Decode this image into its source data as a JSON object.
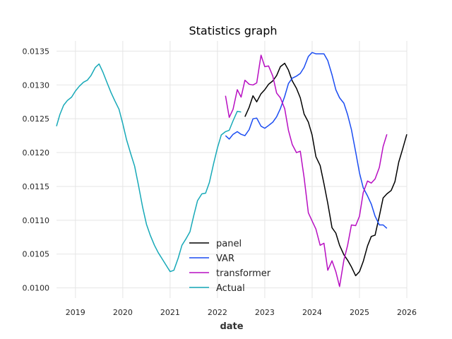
{
  "chart_data": {
    "type": "line",
    "title": "Statistics graph",
    "xlabel": "date",
    "ylabel": "",
    "xlim": [
      2018.6,
      2026.0
    ],
    "ylim": [
      0.00985,
      0.01365
    ],
    "x_ticks": [
      2019,
      2020,
      2021,
      2022,
      2023,
      2024,
      2025,
      2026
    ],
    "x_tick_labels": [
      "2019",
      "2020",
      "2021",
      "2022",
      "2023",
      "2024",
      "2025",
      "2026"
    ],
    "y_ticks": [
      0.01,
      0.0105,
      0.011,
      0.0115,
      0.012,
      0.0125,
      0.013,
      0.0135
    ],
    "y_tick_labels": [
      "0.0100",
      "0.0105",
      "0.0110",
      "0.0115",
      "0.0120",
      "0.0125",
      "0.0130",
      "0.0135"
    ],
    "grid": true,
    "legend_position": "lower-center",
    "series": [
      {
        "name": "panel",
        "color": "#000000",
        "x": [
          2022.58,
          2022.67,
          2022.75,
          2022.83,
          2022.92,
          2023.0,
          2023.08,
          2023.17,
          2023.25,
          2023.33,
          2023.42,
          2023.5,
          2023.58,
          2023.67,
          2023.75,
          2023.83,
          2023.92,
          2024.0,
          2024.08,
          2024.17,
          2024.25,
          2024.33,
          2024.42,
          2024.5,
          2024.58,
          2024.67,
          2024.75,
          2024.83,
          2024.92,
          2025.0,
          2025.08,
          2025.17,
          2025.25,
          2025.33,
          2025.42,
          2025.5,
          2025.58,
          2025.67,
          2025.75,
          2025.83,
          2025.92,
          2026.0
        ],
        "y": [
          0.01253,
          0.01267,
          0.01284,
          0.01275,
          0.01287,
          0.01293,
          0.01301,
          0.01306,
          0.01314,
          0.01327,
          0.01332,
          0.01322,
          0.01306,
          0.01295,
          0.01281,
          0.01257,
          0.01245,
          0.01226,
          0.01194,
          0.01181,
          0.01154,
          0.01125,
          0.01089,
          0.01081,
          0.01063,
          0.01049,
          0.01041,
          0.01031,
          0.01018,
          0.01024,
          0.01039,
          0.01062,
          0.01076,
          0.01078,
          0.01106,
          0.01133,
          0.01139,
          0.01144,
          0.01157,
          0.01186,
          0.01207,
          0.01227
        ]
      },
      {
        "name": "VAR",
        "color": "#1a4cf2",
        "x": [
          2022.17,
          2022.25,
          2022.33,
          2022.42,
          2022.5,
          2022.58,
          2022.67,
          2022.75,
          2022.83,
          2022.92,
          2023.0,
          2023.08,
          2023.17,
          2023.25,
          2023.33,
          2023.42,
          2023.5,
          2023.58,
          2023.67,
          2023.75,
          2023.83,
          2023.92,
          2024.0,
          2024.08,
          2024.17,
          2024.25,
          2024.33,
          2024.42,
          2024.5,
          2024.58,
          2024.67,
          2024.75,
          2024.83,
          2024.92,
          2025.0,
          2025.08,
          2025.17,
          2025.25,
          2025.33,
          2025.42,
          2025.5,
          2025.58
        ],
        "y": [
          0.01225,
          0.0122,
          0.01227,
          0.01231,
          0.01227,
          0.01225,
          0.01234,
          0.0125,
          0.01251,
          0.01239,
          0.01236,
          0.0124,
          0.01245,
          0.01253,
          0.01265,
          0.01283,
          0.01302,
          0.0131,
          0.01313,
          0.01317,
          0.01326,
          0.01342,
          0.01348,
          0.01346,
          0.01346,
          0.01346,
          0.01336,
          0.01315,
          0.01293,
          0.01281,
          0.01273,
          0.01256,
          0.01234,
          0.01201,
          0.0117,
          0.01148,
          0.01136,
          0.01124,
          0.01106,
          0.01093,
          0.01093,
          0.01088
        ]
      },
      {
        "name": "transformer",
        "color": "#b80fc2",
        "x": [
          2022.17,
          2022.25,
          2022.33,
          2022.42,
          2022.5,
          2022.58,
          2022.67,
          2022.75,
          2022.83,
          2022.92,
          2023.0,
          2023.08,
          2023.17,
          2023.25,
          2023.33,
          2023.42,
          2023.5,
          2023.58,
          2023.67,
          2023.75,
          2023.83,
          2023.92,
          2024.0,
          2024.08,
          2024.17,
          2024.25,
          2024.33,
          2024.42,
          2024.5,
          2024.58,
          2024.67,
          2024.75,
          2024.83,
          2024.92,
          2025.0,
          2025.08,
          2025.17,
          2025.25,
          2025.33,
          2025.42,
          2025.5,
          2025.58
        ],
        "y": [
          0.01284,
          0.01252,
          0.01264,
          0.01293,
          0.01282,
          0.01307,
          0.01301,
          0.013,
          0.01303,
          0.01344,
          0.01327,
          0.01328,
          0.01313,
          0.01288,
          0.01281,
          0.01265,
          0.01233,
          0.01212,
          0.012,
          0.01202,
          0.01163,
          0.01111,
          0.01099,
          0.01087,
          0.01063,
          0.01066,
          0.01026,
          0.0104,
          0.01024,
          0.01002,
          0.01041,
          0.01063,
          0.01093,
          0.01092,
          0.01106,
          0.01141,
          0.01158,
          0.01155,
          0.01161,
          0.01178,
          0.01209,
          0.01227
        ]
      },
      {
        "name": "Actual",
        "color": "#17a9b8",
        "x": [
          2018.6,
          2018.67,
          2018.75,
          2018.83,
          2018.92,
          2019.0,
          2019.08,
          2019.17,
          2019.25,
          2019.33,
          2019.42,
          2019.5,
          2019.58,
          2019.67,
          2019.75,
          2019.83,
          2019.92,
          2020.0,
          2020.08,
          2020.17,
          2020.25,
          2020.33,
          2020.42,
          2020.5,
          2020.58,
          2020.67,
          2020.75,
          2020.83,
          2020.92,
          2021.0,
          2021.08,
          2021.17,
          2021.25,
          2021.33,
          2021.42,
          2021.5,
          2021.58,
          2021.67,
          2021.75,
          2021.83,
          2021.92,
          2022.0,
          2022.08,
          2022.17,
          2022.25,
          2022.33,
          2022.42,
          2022.5
        ],
        "y": [
          0.01239,
          0.01256,
          0.0127,
          0.01277,
          0.01282,
          0.01291,
          0.01298,
          0.01304,
          0.01307,
          0.01314,
          0.01326,
          0.01331,
          0.01319,
          0.01303,
          0.01289,
          0.01277,
          0.01264,
          0.01243,
          0.01219,
          0.01198,
          0.0118,
          0.01152,
          0.01119,
          0.01094,
          0.01078,
          0.01063,
          0.01052,
          0.01043,
          0.01033,
          0.01024,
          0.01026,
          0.01044,
          0.01063,
          0.01072,
          0.01083,
          0.01107,
          0.01129,
          0.01139,
          0.0114,
          0.01156,
          0.01184,
          0.01207,
          0.01226,
          0.01231,
          0.01233,
          0.01247,
          0.01261,
          0.0126
        ]
      }
    ]
  }
}
